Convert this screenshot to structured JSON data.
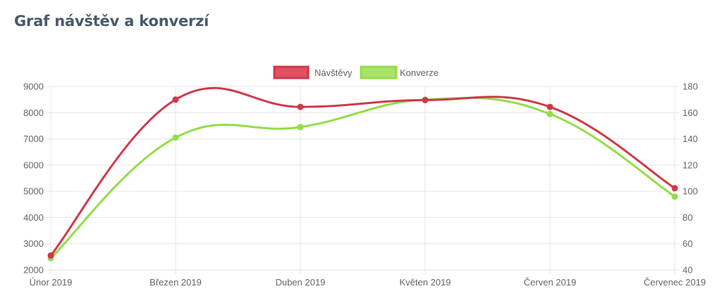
{
  "page": {
    "title": "Graf návštěv a konverzí"
  },
  "colors": {
    "visits": "#d0384a",
    "conversions": "#94dd48",
    "grid": "#e6e6e6",
    "text": "#666666"
  },
  "chart_data": {
    "type": "line",
    "categories": [
      "Únor 2019",
      "Březen 2019",
      "Duben 2019",
      "Květen 2019",
      "Červen 2019",
      "Červenec 2019"
    ],
    "legend_position": "top-center",
    "grid": true,
    "curve": "smooth",
    "y_left": {
      "range": [
        2000,
        9000
      ],
      "ticks": [
        2000,
        3000,
        4000,
        5000,
        6000,
        7000,
        8000,
        9000
      ]
    },
    "y_right": {
      "range": [
        40,
        180
      ],
      "ticks": [
        40,
        60,
        80,
        100,
        120,
        140,
        160,
        180
      ]
    },
    "series": [
      {
        "name": "Návštěvy",
        "axis": "left",
        "color": "#d0384a",
        "fill": "#e05060",
        "values": [
          2550,
          8500,
          8220,
          8480,
          8220,
          5120
        ]
      },
      {
        "name": "Konverze",
        "axis": "right",
        "color": "#94dd48",
        "fill": "#a8e46a",
        "values": [
          49,
          141,
          149,
          170,
          159,
          96
        ]
      }
    ]
  }
}
